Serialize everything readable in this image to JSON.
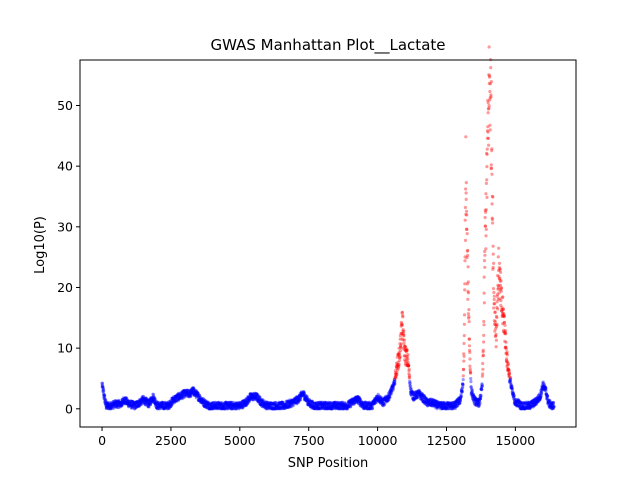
{
  "chart_data": {
    "type": "scatter",
    "title": "GWAS Manhattan Plot__Lactate",
    "xlabel": "SNP Position",
    "ylabel": "Log10(P)",
    "xlim": [
      -800,
      17200
    ],
    "ylim": [
      -3,
      57.5
    ],
    "xticks": [
      0,
      2500,
      5000,
      7500,
      10000,
      12500,
      15000
    ],
    "yticks": [
      0,
      10,
      20,
      30,
      40,
      50
    ],
    "threshold": 5,
    "colors": {
      "significant": "#ff0000",
      "non_significant": "#0000ff"
    },
    "point_opacity": 0.4,
    "profile": {
      "x": [
        0,
        80,
        150,
        300,
        500,
        700,
        800,
        1000,
        1200,
        1500,
        1700,
        1850,
        2000,
        2200,
        2400,
        2600,
        2800,
        3000,
        3200,
        3300,
        3500,
        3700,
        3900,
        4200,
        4500,
        4800,
        5000,
        5200,
        5400,
        5600,
        5800,
        6000,
        6300,
        6600,
        6900,
        7100,
        7300,
        7500,
        7700,
        8000,
        8300,
        8600,
        8900,
        9200,
        9300,
        9500,
        9800,
        10000,
        10200,
        10400,
        10600,
        10700,
        10800,
        10850,
        10900,
        10950,
        11000,
        11100,
        11200,
        11300,
        11500,
        11600,
        11800,
        12000,
        12200,
        12400,
        12600,
        12800,
        13000,
        13100,
        13150,
        13200,
        13250,
        13300,
        13350,
        13400,
        13500,
        13600,
        13700,
        13800,
        13850,
        13900,
        13950,
        14000,
        14050,
        14100,
        14150,
        14200,
        14250,
        14300,
        14350,
        14400,
        14450,
        14500,
        14600,
        14700,
        14800,
        14900,
        15000,
        15100,
        15200,
        15300,
        15500,
        15700,
        15900,
        16000,
        16100,
        16200,
        16300,
        16400
      ],
      "y": [
        4,
        2,
        0.5,
        0.5,
        0.8,
        0.8,
        1.5,
        0.8,
        0.5,
        1.5,
        0.8,
        2,
        0.5,
        0.5,
        0.5,
        1.5,
        2,
        2.5,
        2.5,
        3,
        2,
        1,
        0.5,
        0.5,
        0.5,
        0.5,
        0.5,
        1,
        2,
        2,
        1,
        0.5,
        0.5,
        0.5,
        1,
        1.5,
        2.5,
        1,
        0.5,
        0.5,
        0.5,
        0.5,
        0.5,
        1.5,
        1.5,
        0.5,
        0.5,
        2,
        1,
        2,
        4,
        7,
        9,
        12,
        14,
        11,
        9,
        8,
        3,
        2,
        2.5,
        2,
        1,
        1,
        0.5,
        0.5,
        0.5,
        0.5,
        1.5,
        4,
        12,
        39,
        25,
        18,
        8,
        3,
        1.5,
        1,
        1,
        4,
        12,
        28,
        35,
        45,
        53,
        52,
        42,
        22,
        16,
        12,
        19,
        23,
        20,
        17,
        14,
        8,
        5,
        2.5,
        1,
        1,
        0.5,
        0.5,
        0.5,
        1,
        2,
        4,
        3,
        1,
        0.5,
        0.5
      ]
    }
  }
}
